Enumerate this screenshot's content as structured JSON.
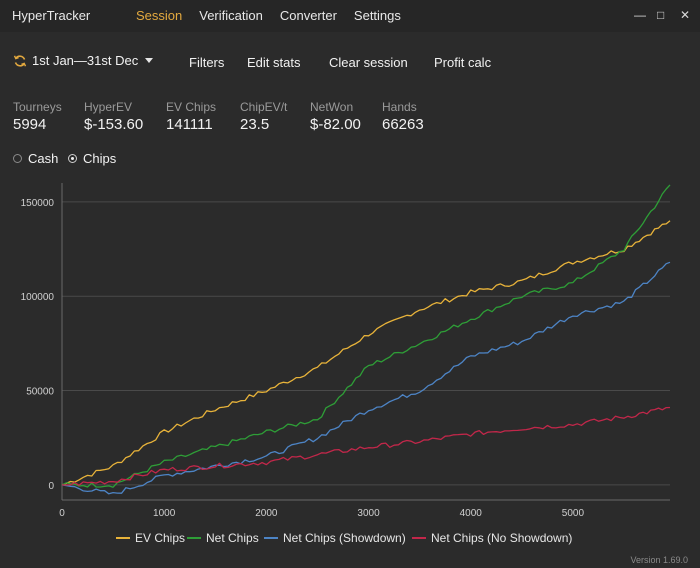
{
  "app": {
    "title": "HyperTracker",
    "version": "Version 1.69.0"
  },
  "menu": [
    {
      "label": "Session",
      "active": true
    },
    {
      "label": "Verification",
      "active": false
    },
    {
      "label": "Converter",
      "active": false
    },
    {
      "label": "Settings",
      "active": false
    }
  ],
  "window_controls": {
    "minimize": "—",
    "maximize": "□",
    "close": "✕"
  },
  "toolbar": {
    "date_range": "1st Jan—31st Dec",
    "filters": "Filters",
    "edit_stats": "Edit stats",
    "clear_session": "Clear session",
    "profit_calc": "Profit calc",
    "accent_color": "#e3a93f"
  },
  "stats": [
    {
      "label": "Tourneys",
      "value": "5994"
    },
    {
      "label": "HyperEV",
      "value": "$-153.60"
    },
    {
      "label": "EV Chips",
      "value": "141111"
    },
    {
      "label": "ChipEV/t",
      "value": "23.5"
    },
    {
      "label": "NetWon",
      "value": "$-82.00"
    },
    {
      "label": "Hands",
      "value": "66263"
    }
  ],
  "mode": {
    "options": [
      {
        "label": "Cash",
        "checked": false
      },
      {
        "label": "Chips",
        "checked": true
      }
    ]
  },
  "chart_data": {
    "type": "line",
    "x": [
      0,
      500,
      1000,
      1500,
      2000,
      2500,
      3000,
      3500,
      4000,
      4500,
      5000,
      5500,
      5950
    ],
    "xlim": [
      0,
      5950
    ],
    "ylim": [
      -8000,
      160000
    ],
    "xticks": [
      0,
      1000,
      2000,
      3000,
      4000,
      5000
    ],
    "yticks": [
      0,
      50000,
      100000,
      150000
    ],
    "grid": "horizontal",
    "legend_position": "bottom",
    "series": [
      {
        "name": "EV Chips",
        "color": "#e8b33a",
        "values": [
          0,
          10000,
          28000,
          40000,
          50000,
          62000,
          80000,
          93000,
          102000,
          108000,
          118000,
          125000,
          140000
        ]
      },
      {
        "name": "Net Chips",
        "color": "#2e9e37",
        "values": [
          0,
          0,
          12000,
          20000,
          28000,
          35000,
          63000,
          75000,
          88000,
          100000,
          107000,
          125000,
          159000
        ]
      },
      {
        "name": "Net Chips (Showdown)",
        "color": "#4d84c5",
        "values": [
          0,
          -5000,
          5000,
          10000,
          15000,
          25000,
          40000,
          50000,
          68000,
          76000,
          90000,
          97000,
          118000
        ]
      },
      {
        "name": "Net Chips (No Showdown)",
        "color": "#c2274a",
        "values": [
          0,
          2000,
          8000,
          10000,
          12000,
          16000,
          20000,
          23000,
          27000,
          30000,
          32000,
          36000,
          41000
        ]
      }
    ]
  }
}
